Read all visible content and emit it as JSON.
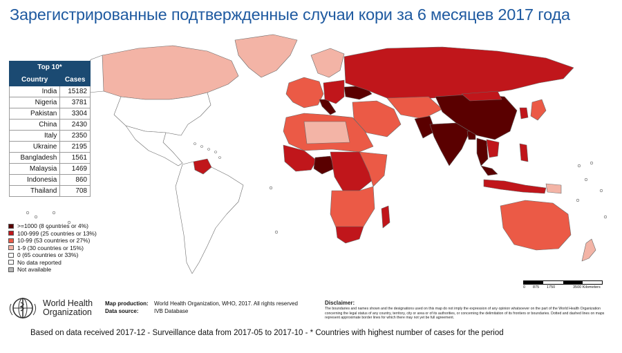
{
  "title": "Зарегистрированные подтвержденные случаи кори за 6 месяцев 2017 года",
  "top10": {
    "header": "Top 10*",
    "col_country": "Country",
    "col_cases": "Cases",
    "rows": [
      {
        "country": "India",
        "cases": "15182"
      },
      {
        "country": "Nigeria",
        "cases": "3781"
      },
      {
        "country": "Pakistan",
        "cases": "3304"
      },
      {
        "country": "China",
        "cases": "2430"
      },
      {
        "country": "Italy",
        "cases": "2350"
      },
      {
        "country": "Ukraine",
        "cases": "2195"
      },
      {
        "country": "Bangladesh",
        "cases": "1561"
      },
      {
        "country": "Malaysia",
        "cases": "1469"
      },
      {
        "country": "Indonesia",
        "cases": "860"
      },
      {
        "country": "Thailand",
        "cases": "708"
      }
    ]
  },
  "legend": [
    {
      "label": ">=1000 (8 countries or 4%)",
      "color": "#5a0000"
    },
    {
      "label": "100-999 (25 countries or 13%)",
      "color": "#c0161b"
    },
    {
      "label": "10-99 (53 countries or 27%)",
      "color": "#eb5a46"
    },
    {
      "label": "1-9 (30 countries or 15%)",
      "color": "#f3b4a6"
    },
    {
      "label": "0 (65 countries or 33%)",
      "color": "#ffffff"
    },
    {
      "label": "No data reported",
      "color": "#ffffff"
    },
    {
      "label": "Not available",
      "color": "#b8b8b8"
    }
  ],
  "scale": {
    "ticks": [
      "0",
      "875",
      "1750",
      "3500 Kilometers"
    ]
  },
  "who": {
    "name_line1": "World Health",
    "name_line2": "Organization"
  },
  "production": {
    "map_production_label": "Map production:",
    "map_production_value": "World Health Organization, WHO, 2017. All rights reserved",
    "data_source_label": "Data source:",
    "data_source_value": "IVB Database"
  },
  "disclaimer": {
    "heading": "Disclaimer:",
    "text": "The boundaries and names shown and the designations used on this map do not imply the expression of any opinion whatsoever on the part of the World Health Organization concerning the legal status of any country, territory, city or area or of its authorities, or concerning the delimitation of its frontiers or boundaries. Dotted and dashed lines on maps represent approximate border lines for which there may not yet be full agreement."
  },
  "footer": "Based on data received 2017-12 - Surveillance data from 2017-05 to 2017-10 - * Countries with highest number of cases for the period"
}
